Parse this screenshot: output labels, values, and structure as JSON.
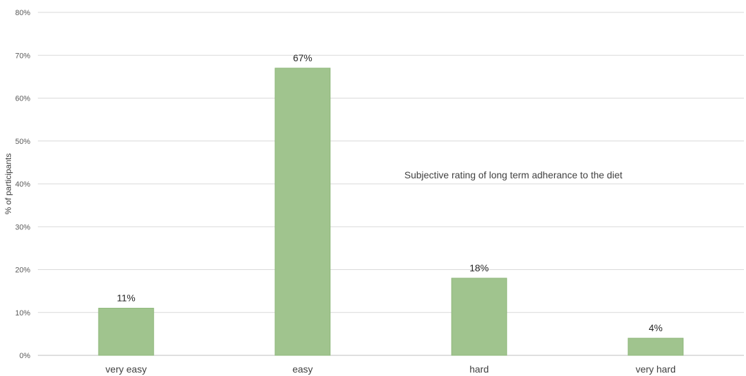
{
  "chart_data": {
    "type": "bar",
    "categories": [
      "very easy",
      "easy",
      "hard",
      "very hard"
    ],
    "values": [
      11,
      67,
      18,
      4
    ],
    "data_labels": [
      "11%",
      "67%",
      "18%",
      "4%"
    ],
    "title": "",
    "xlabel": "",
    "ylabel": "% of participants",
    "ylim": [
      0,
      80
    ],
    "yticks": [
      0,
      10,
      20,
      30,
      40,
      50,
      60,
      70,
      80
    ],
    "ytick_labels": [
      "0%",
      "10%",
      "20%",
      "30%",
      "40%",
      "50%",
      "60%",
      "70%",
      "80%"
    ],
    "annotation": "Subjective rating of long term adherance to the diet",
    "grid": true,
    "legend": "none",
    "bar_color": "#a0c48e",
    "bar_edge_color": "#8fb87c"
  }
}
